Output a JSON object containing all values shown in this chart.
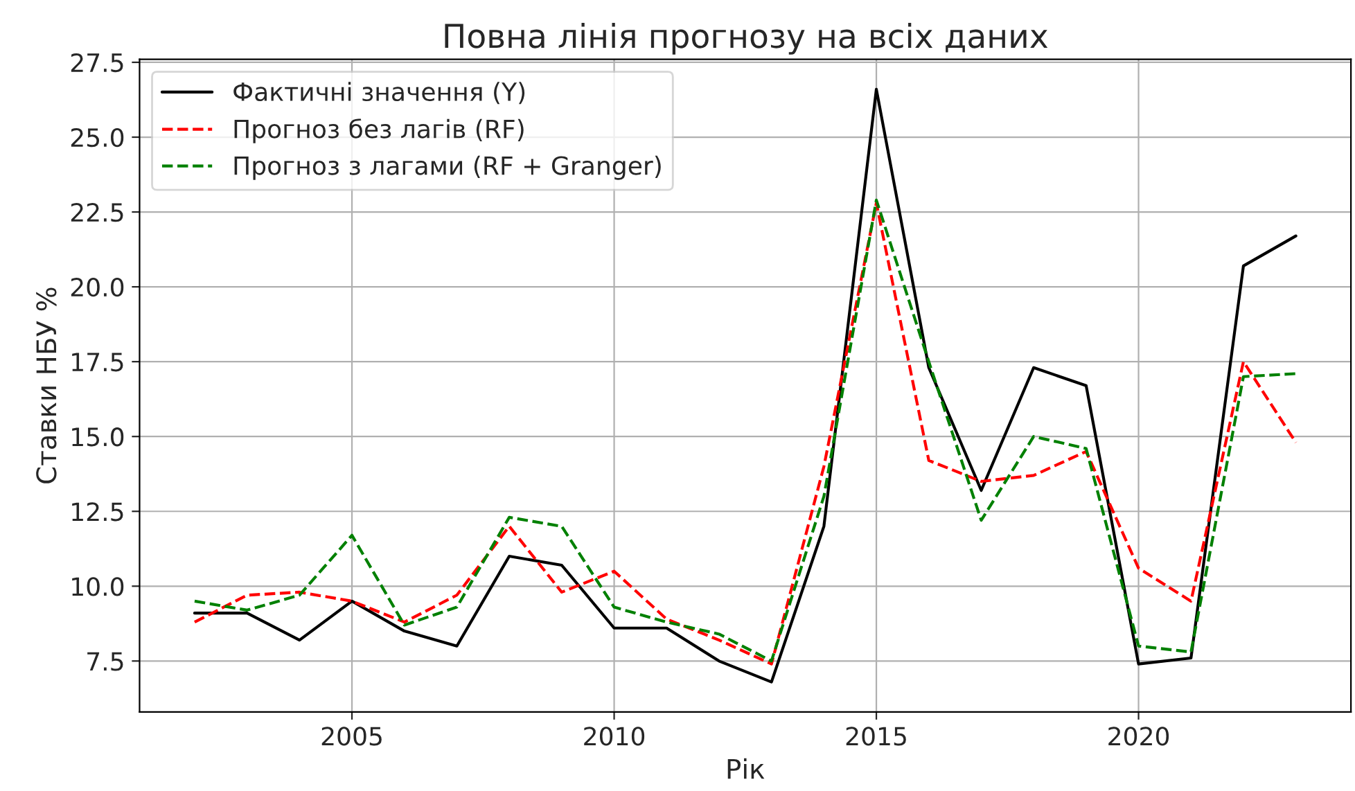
{
  "chart_data": {
    "type": "line",
    "title": "Повна лінія прогнозу на всіх даних",
    "xlabel": "Рік",
    "ylabel": "Ставки НБУ %",
    "x": [
      2002,
      2003,
      2004,
      2005,
      2006,
      2007,
      2008,
      2009,
      2010,
      2011,
      2012,
      2013,
      2014,
      2015,
      2016,
      2017,
      2018,
      2019,
      2020,
      2021,
      2022,
      2023
    ],
    "series": [
      {
        "name": "Фактичні значення (Y)",
        "color": "#000000",
        "line_style": "solid",
        "values": [
          9.1,
          9.1,
          8.2,
          9.5,
          8.5,
          8.0,
          11.0,
          10.7,
          8.6,
          8.6,
          7.5,
          6.8,
          12.0,
          26.6,
          17.3,
          13.2,
          17.3,
          16.7,
          7.4,
          7.6,
          20.7,
          21.7
        ]
      },
      {
        "name": "Прогноз без лагів (RF)",
        "color": "#ff0000",
        "line_style": "dashed",
        "values": [
          8.8,
          9.7,
          9.8,
          9.5,
          8.8,
          9.7,
          12.0,
          9.8,
          10.5,
          8.9,
          8.2,
          7.4,
          14.0,
          22.8,
          14.2,
          13.5,
          13.7,
          14.5,
          10.6,
          9.5,
          17.5,
          14.8
        ]
      },
      {
        "name": "Прогноз з лагами (RF + Granger)",
        "color": "#008000",
        "line_style": "dashed",
        "values": [
          9.5,
          9.2,
          9.7,
          11.7,
          8.7,
          9.3,
          12.3,
          12.0,
          9.3,
          8.8,
          8.4,
          7.5,
          13.0,
          22.9,
          17.5,
          12.2,
          15.0,
          14.6,
          8.0,
          7.8,
          17.0,
          17.1
        ]
      }
    ],
    "xlim": [
      2000.95,
      2024.05
    ],
    "xticks": [
      2005,
      2010,
      2015,
      2020
    ],
    "ylim": [
      5.8,
      27.6
    ],
    "yticks": [
      7.5,
      {
        "value": 10,
        "label": "10.0"
      },
      12.5,
      {
        "value": 15,
        "label": "15.0"
      },
      17.5,
      {
        "value": 20,
        "label": "20.0"
      },
      22.5,
      {
        "value": 25,
        "label": "25.0"
      },
      27.5
    ],
    "grid": true,
    "legend": "top left"
  }
}
